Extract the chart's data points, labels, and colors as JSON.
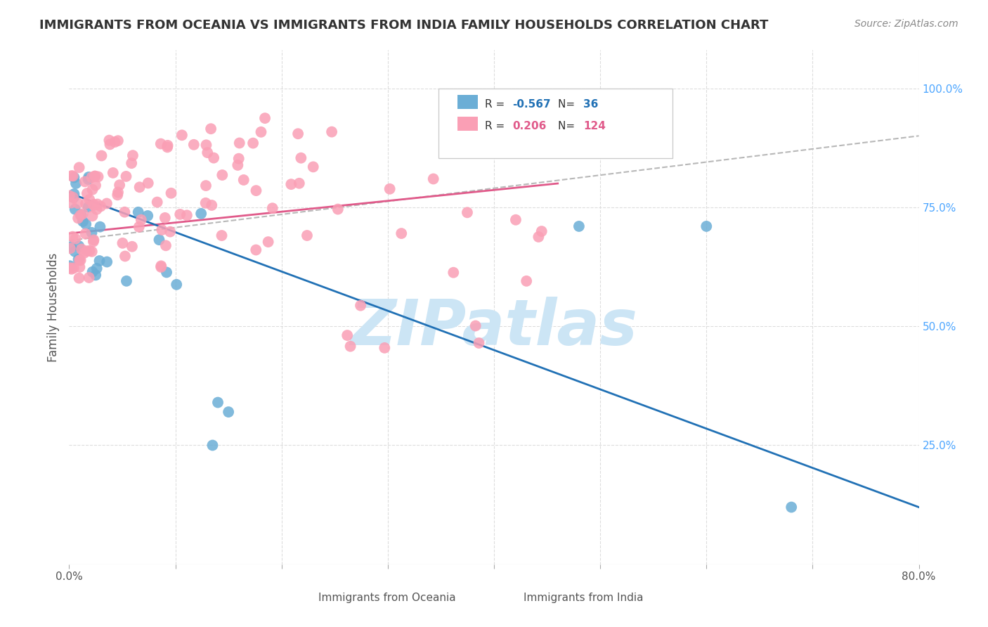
{
  "title": "IMMIGRANTS FROM OCEANIA VS IMMIGRANTS FROM INDIA FAMILY HOUSEHOLDS CORRELATION CHART",
  "source": "Source: ZipAtlas.com",
  "ylabel": "Family Households",
  "ytick_labels": [
    "100.0%",
    "75.0%",
    "50.0%",
    "25.0%"
  ],
  "ytick_values": [
    1.0,
    0.75,
    0.5,
    0.25
  ],
  "legend_blue_label": "Immigrants from Oceania",
  "legend_pink_label": "Immigrants from India",
  "blue_color": "#6baed6",
  "pink_color": "#fa9fb5",
  "blue_line_color": "#2171b5",
  "pink_line_color": "#e05a8a",
  "watermark_color": "#cce5f5",
  "background_color": "#ffffff",
  "grid_color": "#dddddd",
  "title_color": "#333333",
  "right_axis_color": "#4da6ff",
  "xlim": [
    0.0,
    0.8
  ],
  "ylim": [
    0.0,
    1.08
  ]
}
